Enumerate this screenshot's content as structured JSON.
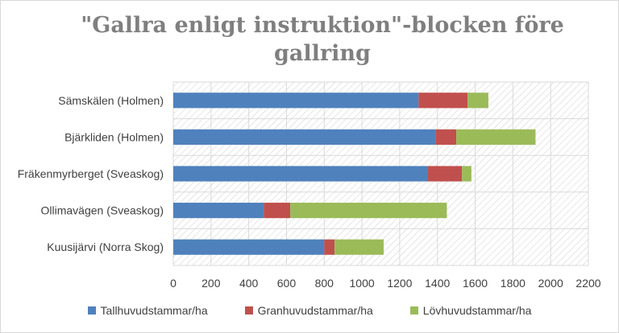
{
  "chart_data": {
    "type": "bar",
    "orientation": "horizontal",
    "stacked": true,
    "title_lines": [
      "\"Gallra enligt instruktion\"-blocken före",
      "gallring"
    ],
    "categories": [
      "Sämskälen (Holmen)",
      "Bjärkliden (Holmen)",
      "Fräkenmyrberget (Sveaskog)",
      "Ollimavägen (Sveaskog)",
      "Kuusijärvi (Norra Skog)"
    ],
    "series": [
      {
        "name": "Tallhuvudstammar/ha",
        "color": "#4f81bd",
        "values": [
          1300,
          1390,
          1350,
          480,
          800
        ]
      },
      {
        "name": "Granhuvudstammar/ha",
        "color": "#c0504d",
        "values": [
          260,
          110,
          180,
          140,
          55
        ]
      },
      {
        "name": "Lövhuvudstammar/ha",
        "color": "#9bbb59",
        "values": [
          110,
          420,
          50,
          830,
          260
        ]
      }
    ],
    "x_ticks": [
      "0",
      "200",
      "400",
      "600",
      "800",
      "1000",
      "1200",
      "1400",
      "1600",
      "1800",
      "2000",
      "2200"
    ],
    "xlim": [
      0,
      2200
    ],
    "grid": true,
    "legend_position": "bottom"
  }
}
